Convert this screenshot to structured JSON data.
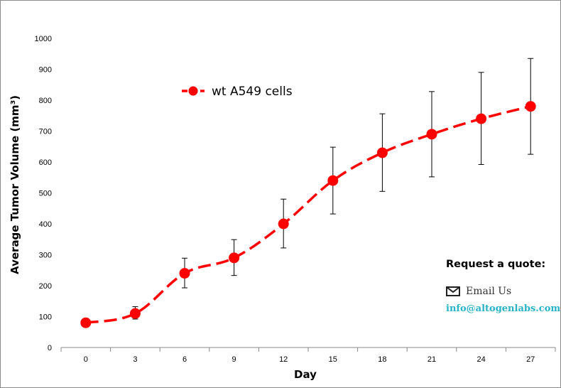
{
  "chart_data": {
    "type": "line",
    "title": "",
    "xlabel": "Day",
    "ylabel": "Average Tumor Volume (mm³)",
    "ylim": [
      0,
      1000
    ],
    "y_ticks": [
      0,
      100,
      200,
      300,
      400,
      500,
      600,
      700,
      800,
      900,
      1000
    ],
    "categories": [
      "0",
      "3",
      "6",
      "9",
      "12",
      "15",
      "18",
      "21",
      "24",
      "27"
    ],
    "series": [
      {
        "name": "wt A549 cells",
        "color": "#ff0000",
        "values": [
          80,
          110,
          240,
          290,
          400,
          540,
          630,
          690,
          740,
          780
        ],
        "error_low": [
          70,
          92,
          193,
          233,
          322,
          432,
          505,
          552,
          592,
          625
        ],
        "error_high": [
          94,
          132,
          289,
          349,
          480,
          648,
          756,
          828,
          890,
          935
        ]
      }
    ],
    "legend_position": "top-left",
    "grid": false
  },
  "quote": {
    "title": "Request a quote:",
    "email_label": "Email Us",
    "email_address": "info@altogenlabs.com",
    "email_icon": "envelope-icon",
    "link_color": "#27b3c8"
  }
}
